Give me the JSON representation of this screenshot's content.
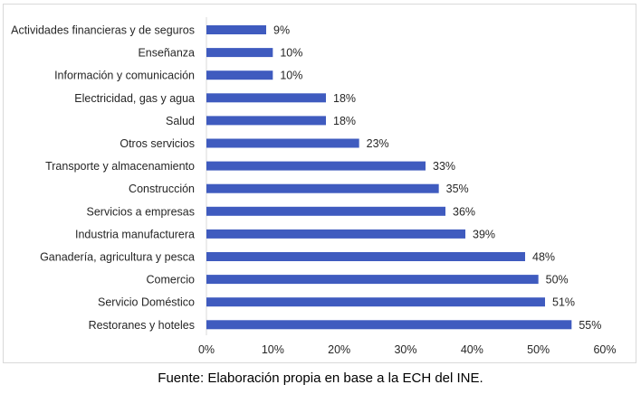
{
  "chart_data": {
    "type": "bar",
    "orientation": "horizontal",
    "categories": [
      "Actividades financieras y de seguros",
      "Enseñanza",
      "Información y comunicación",
      "Electricidad, gas y agua",
      "Salud",
      "Otros servicios",
      "Transporte y almacenamiento",
      "Construcción",
      "Servicios a empresas",
      "Industria manufacturera",
      "Ganadería, agricultura y pesca",
      "Comercio",
      "Servicio Doméstico",
      "Restoranes y hoteles"
    ],
    "values": [
      9,
      10,
      10,
      18,
      18,
      23,
      33,
      35,
      36,
      39,
      48,
      50,
      51,
      55
    ],
    "value_labels": [
      "9%",
      "10%",
      "10%",
      "18%",
      "18%",
      "23%",
      "33%",
      "35%",
      "36%",
      "39%",
      "48%",
      "50%",
      "51%",
      "55%"
    ],
    "xlim": [
      0,
      60
    ],
    "xticks": [
      0,
      10,
      20,
      30,
      40,
      50,
      60
    ],
    "xtick_labels": [
      "0%",
      "10%",
      "20%",
      "30%",
      "40%",
      "50%",
      "60%"
    ],
    "grid": false,
    "bar_color": "#3f5bbf"
  },
  "source_note": "Fuente: Elaboración propia en base a la ECH del INE."
}
